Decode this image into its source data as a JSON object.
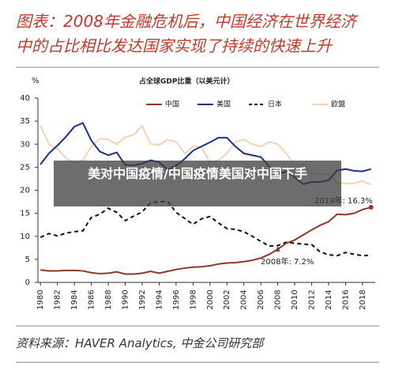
{
  "header": {
    "title": [
      "图表：2008年金融危机后，中国经济在世界经济",
      "中的占比相比发达国家实现了持续的快速上升"
    ]
  },
  "chart_data": {
    "type": "line",
    "title": "占全球GDP比重（以美元计）",
    "ylabel": "%",
    "x": [
      1980,
      1981,
      1982,
      1983,
      1984,
      1985,
      1986,
      1987,
      1988,
      1989,
      1990,
      1991,
      1992,
      1993,
      1994,
      1995,
      1996,
      1997,
      1998,
      1999,
      2000,
      2001,
      2002,
      2003,
      2004,
      2005,
      2006,
      2007,
      2008,
      2009,
      2010,
      2011,
      2012,
      2013,
      2014,
      2015,
      2016,
      2017,
      2018,
      2019
    ],
    "xlim": [
      1979.7,
      2019.5
    ],
    "xticks": [
      1980,
      1982,
      1984,
      1986,
      1988,
      1990,
      1992,
      1994,
      1996,
      1998,
      2000,
      2002,
      2004,
      2006,
      2008,
      2010,
      2012,
      2014,
      2016,
      2018
    ],
    "ylim": [
      0,
      40
    ],
    "yticks": [
      0,
      5,
      10,
      15,
      20,
      25,
      30,
      35,
      40
    ],
    "grid": false,
    "series": [
      {
        "name": "中国",
        "color": "#8b3a2a",
        "dash": false,
        "values": [
          2.7,
          2.5,
          2.5,
          2.6,
          2.6,
          2.5,
          2.1,
          1.9,
          2.0,
          2.3,
          1.8,
          1.8,
          2.0,
          2.4,
          2.0,
          2.4,
          2.8,
          3.1,
          3.3,
          3.4,
          3.6,
          4.0,
          4.2,
          4.3,
          4.5,
          4.8,
          5.3,
          6.1,
          7.2,
          8.5,
          9.2,
          10.3,
          11.4,
          12.4,
          13.2,
          14.8,
          14.7,
          15.0,
          15.8,
          16.3
        ]
      },
      {
        "name": "美国",
        "color": "#1f2d8a",
        "dash": false,
        "values": [
          25.6,
          28.0,
          29.7,
          31.6,
          33.8,
          34.6,
          30.8,
          28.4,
          27.6,
          28.2,
          25.5,
          25.4,
          25.8,
          26.5,
          26.1,
          24.5,
          25.3,
          26.8,
          28.6,
          29.5,
          30.4,
          31.4,
          31.4,
          29.5,
          28.0,
          27.6,
          27.2,
          25.2,
          23.5,
          24.1,
          22.8,
          21.3,
          21.8,
          21.8,
          22.2,
          24.3,
          24.6,
          24.2,
          24.1,
          24.6
        ]
      },
      {
        "name": "日本",
        "color": "#111111",
        "dash": true,
        "values": [
          9.8,
          10.6,
          10.1,
          10.7,
          11.0,
          11.2,
          14.1,
          14.8,
          16.1,
          15.2,
          13.4,
          14.4,
          15.3,
          17.3,
          17.5,
          17.6,
          15.2,
          13.9,
          12.6,
          13.8,
          14.3,
          12.9,
          11.7,
          11.5,
          11.0,
          10.0,
          8.9,
          7.9,
          8.0,
          8.7,
          8.5,
          8.3,
          8.2,
          6.6,
          6.0,
          5.8,
          6.5,
          6.1,
          5.8,
          5.9
        ]
      },
      {
        "name": "欧盟",
        "color": "#f3d3b3",
        "dash": false,
        "values": [
          34.0,
          30.0,
          29.0,
          27.0,
          26.0,
          26.5,
          29.5,
          31.2,
          31.0,
          30.0,
          31.5,
          32.0,
          34.0,
          30.0,
          29.8,
          31.0,
          30.5,
          28.0,
          29.5,
          29.3,
          26.0,
          26.5,
          28.0,
          30.5,
          31.0,
          30.0,
          29.5,
          30.5,
          30.0,
          28.0,
          25.5,
          25.5,
          23.5,
          23.5,
          23.5,
          21.5,
          21.5,
          21.5,
          22.0,
          21.2
        ]
      }
    ],
    "annotations": [
      "2019年: 16.3%",
      "2008年: 7.2%"
    ]
  },
  "overlay": {
    "text": "美对中国疫情/中国疫情美国对中国下手"
  },
  "footer": {
    "source": "资料来源：HAVER Analytics, 中金公司研究部"
  }
}
